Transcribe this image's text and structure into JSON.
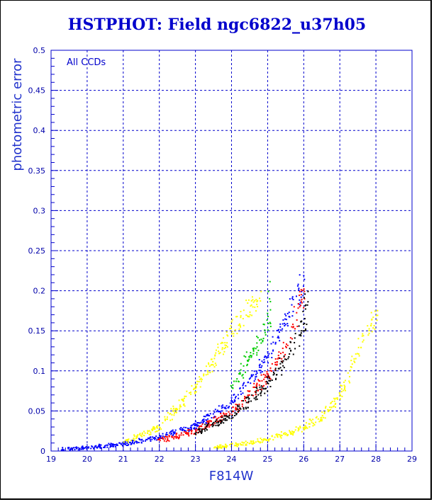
{
  "chart_data": {
    "type": "scatter",
    "title": "HSTPHOT: Field ngc6822_u37h05",
    "xlabel": "F814W",
    "ylabel": "photometric error",
    "annotation": "All CCDs",
    "xlim": [
      19,
      29
    ],
    "ylim": [
      0,
      0.5
    ],
    "x_ticks": [
      "19",
      "20",
      "21",
      "22",
      "23",
      "24",
      "25",
      "26",
      "27",
      "28",
      "29"
    ],
    "y_ticks": [
      "0",
      "0.05",
      "0.1",
      "0.15",
      "0.2",
      "0.25",
      "0.3",
      "0.35",
      "0.4",
      "0.45",
      "0.5"
    ],
    "grid": true,
    "colors": {
      "axes": "#0000cc",
      "grid": "#0000cc",
      "title": "#0000cc"
    },
    "series": [
      {
        "color": "#0000ff",
        "description_points": [
          {
            "x": 19.3,
            "y": 0.003
          },
          {
            "x": 20.0,
            "y": 0.005
          },
          {
            "x": 21.0,
            "y": 0.01
          },
          {
            "x": 22.0,
            "y": 0.018
          },
          {
            "x": 23.0,
            "y": 0.033
          },
          {
            "x": 24.0,
            "y": 0.062
          },
          {
            "x": 25.0,
            "y": 0.118
          },
          {
            "x": 25.5,
            "y": 0.165
          },
          {
            "x": 26.0,
            "y": 0.215
          }
        ]
      },
      {
        "color": "#ff0000",
        "description_points": [
          {
            "x": 22.0,
            "y": 0.014
          },
          {
            "x": 23.0,
            "y": 0.026
          },
          {
            "x": 24.0,
            "y": 0.05
          },
          {
            "x": 25.0,
            "y": 0.095
          },
          {
            "x": 25.5,
            "y": 0.13
          },
          {
            "x": 26.0,
            "y": 0.2
          }
        ]
      },
      {
        "color": "#000000",
        "description_points": [
          {
            "x": 23.0,
            "y": 0.024
          },
          {
            "x": 24.0,
            "y": 0.045
          },
          {
            "x": 25.0,
            "y": 0.085
          },
          {
            "x": 25.5,
            "y": 0.115
          },
          {
            "x": 26.0,
            "y": 0.16
          },
          {
            "x": 26.1,
            "y": 0.2
          }
        ]
      },
      {
        "color": "#ffff00",
        "description_points": [
          {
            "x": 21.0,
            "y": 0.012
          },
          {
            "x": 22.0,
            "y": 0.03
          },
          {
            "x": 23.0,
            "y": 0.08
          },
          {
            "x": 24.0,
            "y": 0.15
          },
          {
            "x": 24.8,
            "y": 0.2
          },
          {
            "x": 23.5,
            "y": 0.005
          },
          {
            "x": 25.0,
            "y": 0.015
          },
          {
            "x": 26.0,
            "y": 0.03
          },
          {
            "x": 26.5,
            "y": 0.045
          },
          {
            "x": 27.0,
            "y": 0.07
          },
          {
            "x": 27.5,
            "y": 0.13
          },
          {
            "x": 28.0,
            "y": 0.17
          }
        ]
      },
      {
        "color": "#00cc00",
        "description_points": [
          {
            "x": 24.0,
            "y": 0.08
          },
          {
            "x": 24.5,
            "y": 0.12
          },
          {
            "x": 25.0,
            "y": 0.16
          },
          {
            "x": 25.0,
            "y": 0.2
          }
        ]
      }
    ]
  }
}
